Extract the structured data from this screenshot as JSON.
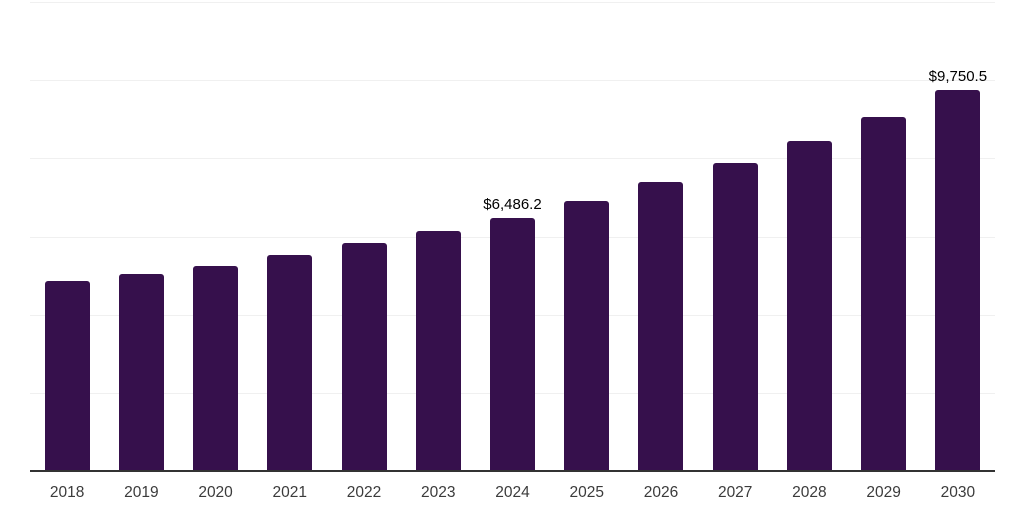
{
  "chart_data": {
    "type": "bar",
    "title": "",
    "xlabel": "",
    "ylabel": "",
    "categories": [
      "2018",
      "2019",
      "2020",
      "2021",
      "2022",
      "2023",
      "2024",
      "2025",
      "2026",
      "2027",
      "2028",
      "2029",
      "2030"
    ],
    "values": [
      4850,
      5050,
      5250,
      5530,
      5840,
      6150,
      6486.2,
      6920,
      7390,
      7890,
      8450,
      9050,
      9750.5
    ],
    "data_labels": [
      {
        "index": 6,
        "text": "$6,486.2"
      },
      {
        "index": 12,
        "text": "$9,750.5"
      }
    ],
    "ylim": [
      0,
      12000
    ],
    "gridline_interval": 2000,
    "grid": "horizontal",
    "legend": "none"
  },
  "style": {
    "bar_color": "#36104C",
    "axis_color": "#333333",
    "gridline_color": "#F0F0F0",
    "tick_label_color": "#3B3B3B",
    "data_label_color": "#000000",
    "background": "#FFFFFF"
  }
}
